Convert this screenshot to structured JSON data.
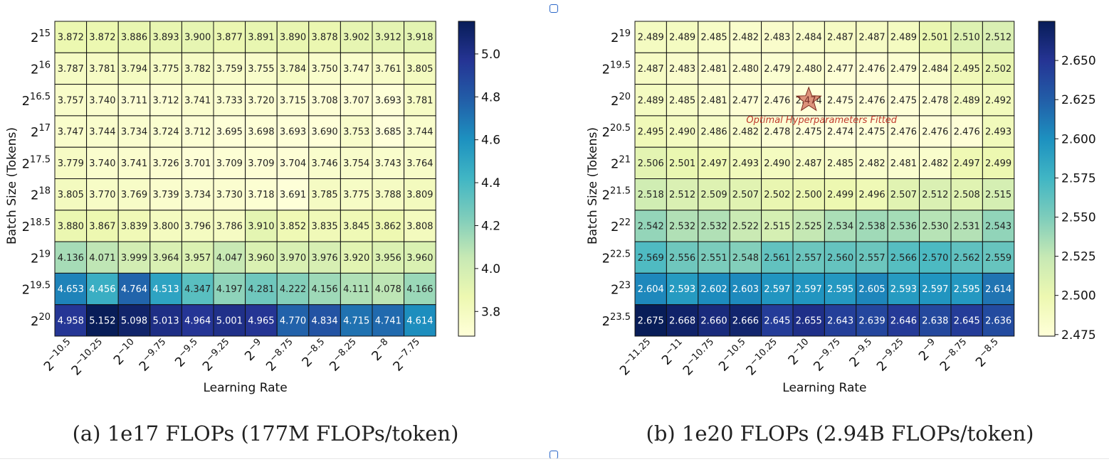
{
  "figure": {
    "caption_a": "(a)  1e17 FLOPs (177M FLOPs/token)",
    "caption_b": "(b)  1e20 FLOPs (2.94B FLOPs/token)"
  },
  "chart_data": [
    {
      "type": "heatmap",
      "xlabel": "Learning Rate",
      "ylabel": "Batch Size (Tokens)",
      "x_exponents": [
        "-10.5",
        "-10.25",
        "-10",
        "-9.75",
        "-9.5",
        "-9.25",
        "-9",
        "-8.75",
        "-8.5",
        "-8.25",
        "-8",
        "-7.75"
      ],
      "y_exponents": [
        "15",
        "16",
        "16.5",
        "17",
        "17.5",
        "18",
        "18.5",
        "19",
        "19.5",
        "20"
      ],
      "values": [
        [
          3.872,
          3.872,
          3.886,
          3.893,
          3.9,
          3.877,
          3.891,
          3.89,
          3.878,
          3.902,
          3.912,
          3.918
        ],
        [
          3.787,
          3.781,
          3.794,
          3.775,
          3.782,
          3.759,
          3.755,
          3.784,
          3.75,
          3.747,
          3.761,
          3.805
        ],
        [
          3.757,
          3.74,
          3.711,
          3.712,
          3.741,
          3.733,
          3.72,
          3.715,
          3.708,
          3.707,
          3.693,
          3.781
        ],
        [
          3.747,
          3.744,
          3.734,
          3.724,
          3.712,
          3.695,
          3.698,
          3.693,
          3.69,
          3.753,
          3.685,
          3.744
        ],
        [
          3.779,
          3.74,
          3.741,
          3.726,
          3.701,
          3.709,
          3.709,
          3.704,
          3.746,
          3.754,
          3.743,
          3.764
        ],
        [
          3.805,
          3.77,
          3.769,
          3.739,
          3.734,
          3.73,
          3.718,
          3.691,
          3.785,
          3.775,
          3.788,
          3.809
        ],
        [
          3.88,
          3.867,
          3.839,
          3.8,
          3.796,
          3.786,
          3.91,
          3.852,
          3.835,
          3.845,
          3.862,
          3.808
        ],
        [
          4.136,
          4.071,
          3.999,
          3.964,
          3.957,
          4.047,
          3.96,
          3.97,
          3.976,
          3.92,
          3.956,
          3.96
        ],
        [
          4.653,
          4.456,
          4.764,
          4.513,
          4.347,
          4.197,
          4.281,
          4.222,
          4.156,
          4.111,
          4.078,
          4.166
        ],
        [
          4.958,
          5.152,
          5.098,
          5.013,
          4.964,
          5.001,
          4.965,
          4.77,
          4.834,
          4.715,
          4.741,
          4.614
        ]
      ],
      "colorbar": {
        "min": 3.685,
        "max": 5.152,
        "ticks": [
          "3.8",
          "4.0",
          "4.2",
          "4.4",
          "4.6",
          "4.8",
          "5.0"
        ]
      },
      "colormap": [
        "#ffffd9",
        "#edf8b1",
        "#c7e9b4",
        "#7fcdbb",
        "#41b6c4",
        "#1d91c0",
        "#225ea8",
        "#253494",
        "#081d58"
      ]
    },
    {
      "type": "heatmap",
      "xlabel": "Learning Rate",
      "ylabel": "Batch Size (Tokens)",
      "x_exponents": [
        "-11.25",
        "-11",
        "-10.75",
        "-10.5",
        "-10.25",
        "-10",
        "-9.75",
        "-9.5",
        "-9.25",
        "-9",
        "-8.75",
        "-8.5"
      ],
      "y_exponents": [
        "19",
        "19.5",
        "20",
        "20.5",
        "21",
        "21.5",
        "22",
        "22.5",
        "23",
        "23.5"
      ],
      "values": [
        [
          2.489,
          2.489,
          2.485,
          2.482,
          2.483,
          2.484,
          2.487,
          2.487,
          2.489,
          2.501,
          2.51,
          2.512
        ],
        [
          2.487,
          2.483,
          2.481,
          2.48,
          2.479,
          2.48,
          2.477,
          2.476,
          2.479,
          2.484,
          2.495,
          2.502
        ],
        [
          2.489,
          2.485,
          2.481,
          2.477,
          2.476,
          2.474,
          2.475,
          2.476,
          2.475,
          2.478,
          2.489,
          2.492
        ],
        [
          2.495,
          2.49,
          2.486,
          2.482,
          2.478,
          2.475,
          2.474,
          2.475,
          2.476,
          2.476,
          2.476,
          2.493
        ],
        [
          2.506,
          2.501,
          2.497,
          2.493,
          2.49,
          2.487,
          2.485,
          2.482,
          2.481,
          2.482,
          2.497,
          2.499
        ],
        [
          2.518,
          2.512,
          2.509,
          2.507,
          2.502,
          2.5,
          2.499,
          2.496,
          2.507,
          2.512,
          2.508,
          2.515
        ],
        [
          2.542,
          2.532,
          2.532,
          2.522,
          2.515,
          2.525,
          2.534,
          2.538,
          2.536,
          2.53,
          2.531,
          2.543
        ],
        [
          2.569,
          2.556,
          2.551,
          2.548,
          2.561,
          2.557,
          2.56,
          2.557,
          2.566,
          2.57,
          2.562,
          2.559
        ],
        [
          2.604,
          2.593,
          2.602,
          2.603,
          2.597,
          2.597,
          2.595,
          2.605,
          2.593,
          2.597,
          2.595,
          2.614
        ],
        [
          2.675,
          2.668,
          2.66,
          2.666,
          2.645,
          2.655,
          2.643,
          2.639,
          2.646,
          2.638,
          2.645,
          2.636
        ]
      ],
      "colorbar": {
        "min": 2.474,
        "max": 2.675,
        "ticks": [
          "2.475",
          "2.500",
          "2.525",
          "2.550",
          "2.575",
          "2.600",
          "2.625",
          "2.650"
        ]
      },
      "colormap": [
        "#ffffd9",
        "#edf8b1",
        "#c7e9b4",
        "#7fcdbb",
        "#41b6c4",
        "#1d91c0",
        "#225ea8",
        "#253494",
        "#081d58"
      ],
      "annotation": {
        "text": "Optimal Hyperparameters Fitted",
        "at_row": 2,
        "at_col": 5,
        "marker": "star",
        "color": "#c0392b"
      }
    }
  ]
}
